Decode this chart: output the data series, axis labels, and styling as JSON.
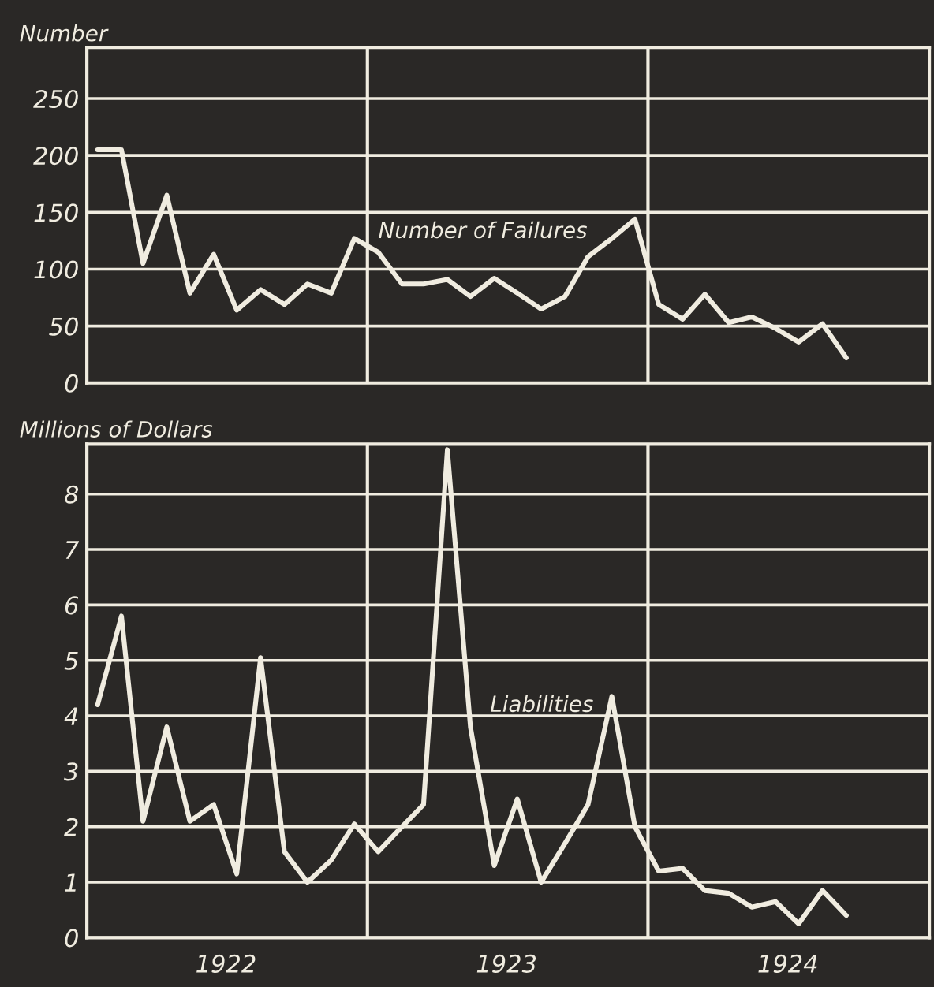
{
  "chart_data": [
    {
      "type": "line",
      "ylabel": "Number",
      "x": [
        "1922-01-15",
        "1922-02-15",
        "1922-03-15",
        "1922-04-15",
        "1922-05-15",
        "1922-06-15",
        "1922-07-15",
        "1922-08-15",
        "1922-09-15",
        "1922-10-15",
        "1922-11-15",
        "1922-12-15",
        "1923-01-15",
        "1923-02-15",
        "1923-03-15",
        "1923-04-15",
        "1923-05-15",
        "1923-06-15",
        "1923-07-15",
        "1923-08-15",
        "1923-09-15",
        "1923-10-15",
        "1923-11-15",
        "1923-12-15",
        "1924-01-15",
        "1924-02-15",
        "1924-03-15",
        "1924-04-15",
        "1924-05-15",
        "1924-06-15",
        "1924-07-15",
        "1924-08-15",
        "1924-09-15"
      ],
      "series": [
        {
          "color": "#f0ece0",
          "values": [
            205,
            205,
            105,
            165,
            79,
            113,
            64,
            82,
            69,
            87,
            79,
            127,
            115,
            87,
            87,
            91,
            76,
            92,
            79,
            65,
            76,
            111,
            127,
            144,
            69,
            56,
            78,
            53,
            58,
            48,
            36,
            52,
            22
          ]
        }
      ],
      "xlim": [
        "1922-01-01",
        "1925-01-01"
      ],
      "ylim": [
        0,
        295
      ],
      "yticks": [
        0,
        50,
        100,
        150,
        200,
        250
      ],
      "ref_lines": [
        {
          "axis": "x",
          "value": "1923-01-01",
          "label": null
        },
        {
          "axis": "x",
          "value": "1924-01-01",
          "label": null
        }
      ],
      "annotations": [
        "Number of Failures"
      ],
      "grid": "y",
      "tick_labels": "y",
      "legend": false,
      "line_style": "solid",
      "marker": "none"
    },
    {
      "type": "line",
      "ylabel": "Millions of Dollars",
      "x": [
        "1922-01-15",
        "1922-02-15",
        "1922-03-15",
        "1922-04-15",
        "1922-05-15",
        "1922-06-15",
        "1922-07-15",
        "1922-08-15",
        "1922-09-15",
        "1922-10-15",
        "1922-11-15",
        "1922-12-15",
        "1923-01-15",
        "1923-02-15",
        "1923-03-15",
        "1923-04-15",
        "1923-05-15",
        "1923-06-15",
        "1923-07-15",
        "1923-08-15",
        "1923-09-15",
        "1923-10-15",
        "1923-11-15",
        "1923-12-15",
        "1924-01-15",
        "1924-02-15",
        "1924-03-15",
        "1924-04-15",
        "1924-05-15",
        "1924-06-15",
        "1924-07-15",
        "1924-08-15",
        "1924-09-15"
      ],
      "series": [
        {
          "color": "#f0ece0",
          "values": [
            4.2,
            5.8,
            2.1,
            3.8,
            2.1,
            2.4,
            1.15,
            5.05,
            1.55,
            1.0,
            1.4,
            2.05,
            1.55,
            2.0,
            2.4,
            8.8,
            3.8,
            1.3,
            2.5,
            1.0,
            1.7,
            2.4,
            4.35,
            2.0,
            1.2,
            1.25,
            0.85,
            0.8,
            0.55,
            0.65,
            0.25,
            0.85,
            0.4
          ]
        }
      ],
      "xlim": [
        "1922-01-01",
        "1925-01-01"
      ],
      "xticks": [
        {
          "value": "1922-07-01",
          "label": "1922"
        },
        {
          "value": "1923-07-01",
          "label": "1923"
        },
        {
          "value": "1924-07-01",
          "label": "1924"
        }
      ],
      "ylim": [
        0,
        8.9
      ],
      "yticks": [
        0,
        1,
        2,
        3,
        4,
        5,
        6,
        7,
        8
      ],
      "ref_lines": [
        {
          "axis": "x",
          "value": "1923-01-01",
          "label": null
        },
        {
          "axis": "x",
          "value": "1924-01-01",
          "label": null
        }
      ],
      "annotations": [
        "Liabilities"
      ],
      "grid": "y",
      "legend": false,
      "line_style": "solid",
      "marker": "none"
    }
  ]
}
